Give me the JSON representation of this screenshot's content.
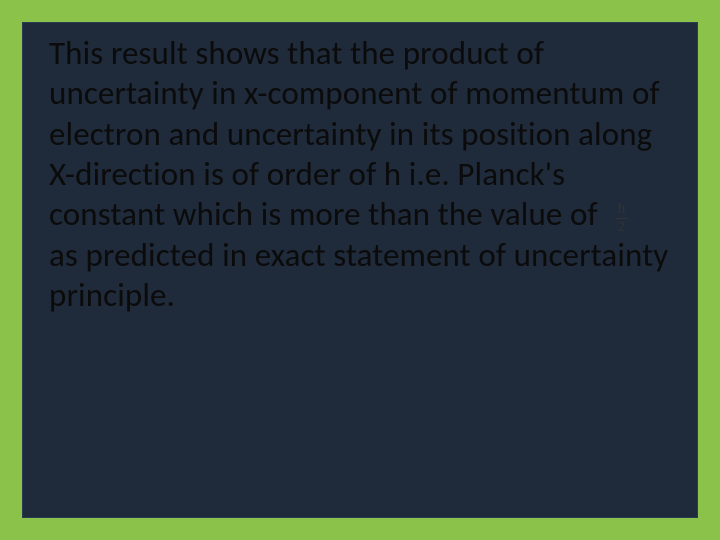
{
  "slide": {
    "background_color": "#8bc34a",
    "panel_background": "#1f2a3a",
    "panel_border": "#2a3a52",
    "text_color": "#0b0b0b",
    "font_family": "Calibri",
    "font_size_pt": 25,
    "line_height": 1.22,
    "body": {
      "part1": "This result shows that the product of uncertainty in x-component of momentum of electron and uncertainty in its position along X-direction is of order of h i.e. Planck's constant which is more than the value of",
      "fraction": {
        "numerator": "h",
        "denominator": "2",
        "color": "#333333",
        "font_size_pt": 11
      },
      "part2": "as predicted in exact statement of uncertainty principle."
    }
  }
}
